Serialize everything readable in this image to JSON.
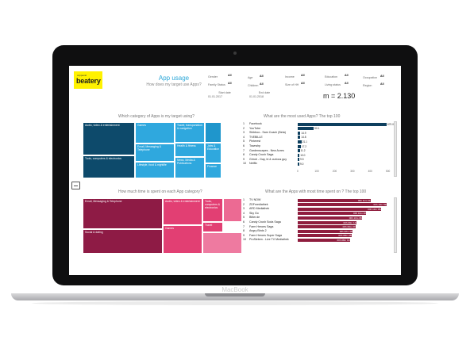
{
  "device": {
    "brand": "MacBook"
  },
  "header": {
    "logo_top": "coppecal",
    "logo_main": "beatery",
    "title": "App usage",
    "subtitle": "How does my target use Apps?",
    "metric": "m = 2.130"
  },
  "filters": [
    {
      "label": "Gender",
      "value": "All"
    },
    {
      "label": "Age",
      "value": "All"
    },
    {
      "label": "Income",
      "value": "All"
    },
    {
      "label": "Education",
      "value": "All"
    },
    {
      "label": "Occupation",
      "value": "All"
    },
    {
      "label": "Family Status",
      "value": "All"
    },
    {
      "label": "Children",
      "value": "All"
    },
    {
      "label": "Size of HH",
      "value": "All"
    },
    {
      "label": "Living status",
      "value": "All"
    },
    {
      "label": "Region",
      "value": "All"
    }
  ],
  "dates": {
    "start_label": "Start date",
    "start_value": "01.01.2017",
    "end_label": "End date",
    "end_value": "01.01.2018"
  },
  "sections": {
    "category_title": "Which category of Apps is my target using?",
    "time_title": "How much time is spent on each App category?",
    "used_title": "What are the most used Apps? The top 100",
    "spent_title": "What are the Apps with most time spent on ? The top 100"
  },
  "treemap_categories": [
    "Audio, video & entertainment",
    "Games",
    "Travel, transportation & navigation",
    "Email, Messaging & Telephone",
    "Health & fitness",
    "Tools, computers & electronics",
    "Jobs & Education",
    "Lifestyle, food & nightlife",
    "News, Media & Publications",
    "Finance"
  ],
  "treemap_time": [
    "Email, Messaging & Telephone",
    "Audio, video & entertainment",
    "Tools, computers & electronics",
    "Social & dating",
    "Games",
    "Travel"
  ],
  "colors": {
    "blue_dark": "#0d4a6b",
    "blue_light": "#2fa8de",
    "pink_dark": "#8e1b45",
    "pink_light": "#e23f73",
    "bar_dark": "#0e3f5e",
    "bar_red": "#8f1d3e"
  },
  "most_used": {
    "apps": [
      {
        "rank": "1",
        "name": "Facebook",
        "label": "670.0"
      },
      {
        "rank": "2",
        "name": "YouTube",
        "label": "90.1"
      },
      {
        "rank": "3",
        "name": "Shibboo - Sam Coach (Beta)",
        "label": "14.9"
      },
      {
        "rank": "4",
        "name": "TVEBILLE",
        "label": "14.8"
      },
      {
        "rank": "5",
        "name": "Pinterest",
        "label": "21.1"
      },
      {
        "rank": "6",
        "name": "Townshp",
        "label": "17.2"
      },
      {
        "rank": "7",
        "name": "Gardenscapes - New Acres",
        "label": "11.2"
      },
      {
        "rank": "8",
        "name": "Candy Crush Saga",
        "label": "10.0"
      },
      {
        "rank": "9",
        "name": "Grindr - Gay, bi & curious guy",
        "label": "9.5"
      },
      {
        "rank": "10",
        "name": "Netflix",
        "label": "9.0"
      }
    ],
    "values": [
      670,
      90.1,
      14.9,
      14.8,
      21.1,
      17.2,
      11.2,
      10.0,
      9.5,
      9.0
    ],
    "axis_ticks": [
      "0",
      "100",
      "200",
      "300",
      "400",
      "500"
    ],
    "axis_max": 500
  },
  "most_time": {
    "apps": [
      {
        "rank": "1",
        "name": "TV NOW",
        "label": "00h 11m 31s"
      },
      {
        "rank": "2",
        "name": "ZDFmediathek",
        "label": "00h 13m 59s"
      },
      {
        "rank": "3",
        "name": "ARD Mediathek",
        "label": "00h 13m 05s"
      },
      {
        "rank": "4",
        "name": "Sky Go",
        "label": "00h 10m 48s"
      },
      {
        "rank": "5",
        "name": "Bitter.de",
        "label": "00h 10m 08s"
      },
      {
        "rank": "6",
        "name": "Candy Crush Soda Saga",
        "label": "00h 09m 14s"
      },
      {
        "rank": "7",
        "name": "Farm Heroes Saga",
        "label": "00h 09m 07s"
      },
      {
        "rank": "8",
        "name": "Angry Birds 2",
        "label": "00h 08m 38s"
      },
      {
        "rank": "9",
        "name": "Farm Heroes Super Saga",
        "label": "00h 08m 28s"
      },
      {
        "rank": "10",
        "name": "ProSieben - Live TV Mediathek",
        "label": "00h 08m 14s"
      }
    ],
    "values": [
      11.5,
      13.98,
      13.08,
      10.8,
      10.13,
      9.23,
      9.12,
      8.63,
      8.47,
      8.23
    ],
    "axis_max": 14
  }
}
